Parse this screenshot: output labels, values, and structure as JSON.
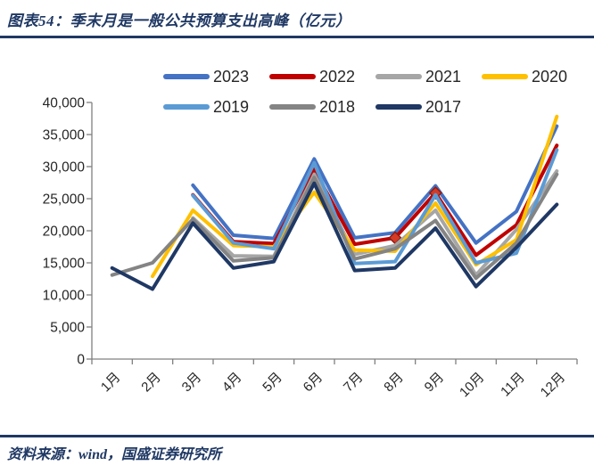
{
  "header": {
    "title": "图表54：季末月是一般公共预算支出高峰（亿元）"
  },
  "footer": {
    "source": "资料来源：wind，国盛证券研究所"
  },
  "colors": {
    "accent_navy": "#1F3864",
    "axis_gray": "#808080",
    "text_dark": "#262626",
    "marker_fill": "#D43A26",
    "marker_stroke": "#8F1D14"
  },
  "chart_data": {
    "type": "line",
    "title": "季末月是一般公共预算支出高峰（亿元）",
    "categories": [
      "1月",
      "2月",
      "3月",
      "4月",
      "5月",
      "6月",
      "7月",
      "8月",
      "9月",
      "10月",
      "11月",
      "12月"
    ],
    "xlabel": "",
    "ylabel": "",
    "ylim": [
      0,
      40000
    ],
    "ytick_interval": 5000,
    "grid": false,
    "legend_position": "top",
    "legend_rows": [
      4,
      3
    ],
    "series": [
      {
        "name": "2023",
        "color": "#4472C4",
        "values": [
          null,
          null,
          27100,
          19300,
          18800,
          31200,
          18900,
          19700,
          27000,
          18100,
          23000,
          36300
        ]
      },
      {
        "name": "2022",
        "color": "#C00000",
        "markers": [
          8,
          9
        ],
        "values": [
          null,
          null,
          25600,
          18300,
          18000,
          29600,
          17900,
          18900,
          25900,
          16200,
          20900,
          33300
        ]
      },
      {
        "name": "2021",
        "color": "#A6A6A6",
        "values": [
          null,
          null,
          22000,
          16100,
          16000,
          28800,
          16300,
          17700,
          23200,
          13100,
          20200,
          29300
        ]
      },
      {
        "name": "2020",
        "color": "#FFC000",
        "values": [
          null,
          12900,
          23200,
          17700,
          17500,
          26000,
          17000,
          16800,
          24300,
          14700,
          18600,
          37800
        ]
      },
      {
        "name": "2019",
        "color": "#5B9BD5",
        "values": [
          null,
          null,
          25500,
          18100,
          17200,
          30600,
          14900,
          15200,
          25600,
          15000,
          16500,
          32600
        ]
      },
      {
        "name": "2018",
        "color": "#848484",
        "values": [
          13100,
          15000,
          21800,
          15300,
          15800,
          28300,
          15600,
          17200,
          21600,
          12600,
          18100,
          28800
        ]
      },
      {
        "name": "2017",
        "color": "#1F3864",
        "values": [
          14200,
          10900,
          21200,
          14200,
          15200,
          27400,
          13800,
          14200,
          20400,
          11300,
          17400,
          24100
        ]
      }
    ]
  }
}
